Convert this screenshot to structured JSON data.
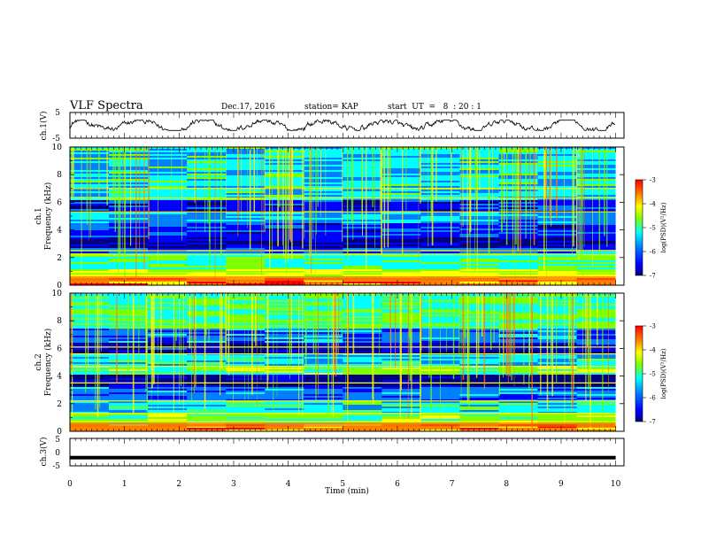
{
  "header": {
    "title": "VLF Spectra",
    "date": "Dec.17, 2016",
    "station": "station= KAP",
    "start": "start  UT  =   8  : 20 : 1"
  },
  "chart_data": [
    {
      "type": "line",
      "name": "ch1-waveform",
      "ylabel": "ch.1(V)",
      "ylim": [
        -5,
        5
      ],
      "yticks": [
        "5",
        "-5"
      ],
      "xlim": [
        0,
        10
      ],
      "description_of_signal": "continuous noisy waveform oscillating roughly between -2 and +2 V",
      "amplitude_v": 2
    },
    {
      "type": "heatmap",
      "name": "ch1-spectrogram",
      "ylabel": "ch.1\nFrequency (kHz)",
      "ylim": [
        0,
        10
      ],
      "yticks": [
        "0",
        "2",
        "4",
        "6",
        "8",
        "10"
      ],
      "xlim": [
        0,
        9.85
      ],
      "colorbar": {
        "label": "log(PSD)(V²/Hz)",
        "range": [
          -7,
          -3
        ],
        "ticks": [
          "-3",
          "-4",
          "-5",
          "-6",
          "-7"
        ]
      }
    },
    {
      "type": "heatmap",
      "name": "ch2-spectrogram",
      "ylabel": "ch.2\nFrequency (kHz)",
      "ylim": [
        0,
        10
      ],
      "yticks": [
        "0",
        "2",
        "4",
        "6",
        "8",
        "10"
      ],
      "xlim": [
        0,
        9.85
      ],
      "colorbar": {
        "label": "log(PSD)(V²/Hz)",
        "range": [
          -7,
          -3
        ],
        "ticks": [
          "-3",
          "-4",
          "-5",
          "-6",
          "-7"
        ]
      }
    },
    {
      "type": "line",
      "name": "ch3-waveform",
      "ylabel": "ch.3(V)",
      "ylim": [
        -5,
        5
      ],
      "yticks": [
        "5",
        "0",
        "-5"
      ],
      "xlim": [
        0,
        10
      ],
      "x": [
        0,
        9.85
      ],
      "values": [
        -2,
        -2
      ]
    }
  ],
  "x_axis": {
    "label": "Time (min)",
    "ticks": [
      "0",
      "1",
      "2",
      "3",
      "4",
      "5",
      "6",
      "7",
      "8",
      "9",
      "10"
    ]
  },
  "colors": {
    "colormap": [
      "#000080",
      "#0000ff",
      "#0080ff",
      "#00ffff",
      "#80ff00",
      "#ffff00",
      "#ff8000",
      "#ff0000"
    ]
  }
}
